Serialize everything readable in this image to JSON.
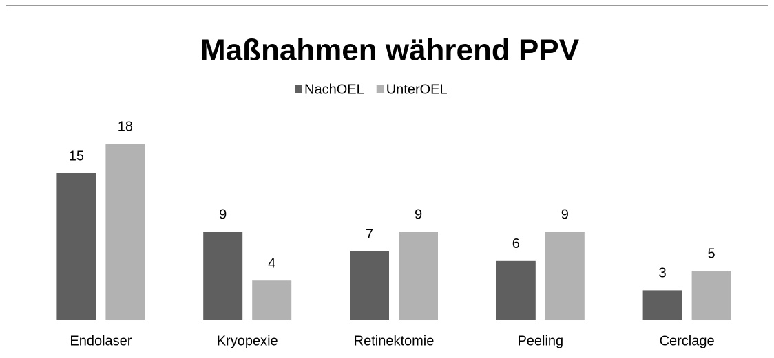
{
  "chart_data": {
    "type": "bar",
    "title": "Maßnahmen während PPV",
    "categories": [
      "Endolaser",
      "Kryopexie",
      "Retinektomie",
      "Peeling",
      "Cerclage"
    ],
    "series": [
      {
        "name": "NachOEL",
        "color": "#5f5f5f",
        "values": [
          15,
          9,
          7,
          6,
          3
        ]
      },
      {
        "name": "UnterOEL",
        "color": "#b2b2b2",
        "values": [
          18,
          4,
          9,
          9,
          5
        ]
      }
    ],
    "ylim": [
      0,
      20
    ],
    "legend": "top"
  }
}
